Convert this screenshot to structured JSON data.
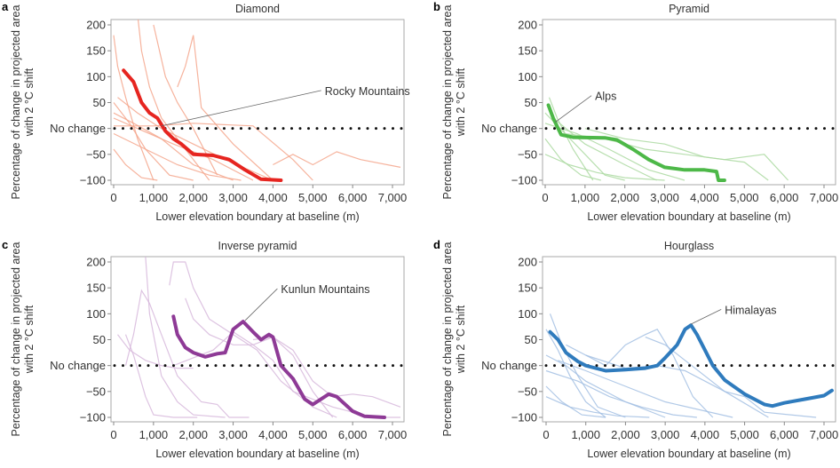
{
  "chart_data": [
    {
      "panel": "a",
      "type": "line",
      "title": "Diamond",
      "xlabel": "Lower elevation boundary at baseline (m)",
      "ylabel": [
        "Percentage of change in projected area",
        "with 2 °C shift"
      ],
      "xlim": [
        0,
        7200
      ],
      "ylim": [
        -100,
        200
      ],
      "xticks": [
        0,
        1000,
        2000,
        3000,
        4000,
        5000,
        6000,
        7000
      ],
      "xtick_labels": [
        "0",
        "1,000",
        "2,000",
        "3,000",
        "4,000",
        "5,000",
        "6,000",
        "7,000"
      ],
      "yticks": [
        200,
        150,
        100,
        50,
        0,
        -50,
        -100
      ],
      "ytick_labels": [
        "200",
        "150",
        "100",
        "50",
        "No change",
        "−50",
        "−100"
      ],
      "reference_line": {
        "y": 0,
        "label": "No change",
        "style": "dotted",
        "color": "#111111"
      },
      "color_highlight": "#e62520",
      "color_background": "#f5a68c",
      "highlight": {
        "name": "Rocky Mountains",
        "label_at": [
          5300,
          70
        ],
        "pointer_to": [
          1200,
          5
        ],
        "x": [
          250,
          500,
          700,
          900,
          1100,
          1300,
          1500,
          1700,
          2000,
          2500,
          2900,
          3300,
          3700,
          4200
        ],
        "y": [
          112,
          90,
          50,
          30,
          20,
          -5,
          -20,
          -30,
          -50,
          -52,
          -60,
          -80,
          -98,
          -100
        ]
      },
      "background": [
        {
          "x": [
            0,
            400,
            800,
            1400,
            2000
          ],
          "y": [
            50,
            10,
            -40,
            -90,
            -100
          ]
        },
        {
          "x": [
            0,
            500,
            1200,
            2000,
            3000
          ],
          "y": [
            30,
            10,
            -20,
            -70,
            -100
          ]
        },
        {
          "x": [
            0,
            300,
            700,
            1100
          ],
          "y": [
            -40,
            -70,
            -95,
            -100
          ]
        },
        {
          "x": [
            0,
            600,
            1500,
            2500,
            3500
          ],
          "y": [
            20,
            0,
            -30,
            -60,
            -100
          ]
        },
        {
          "x": [
            0,
            100,
            300,
            600,
            1000
          ],
          "y": [
            180,
            120,
            60,
            -20,
            -100
          ]
        },
        {
          "x": [
            600,
            700,
            900,
            1200,
            1800,
            2400
          ],
          "y": [
            220,
            150,
            80,
            20,
            -40,
            -100
          ]
        },
        {
          "x": [
            1600,
            1800,
            2000,
            2200,
            3000,
            4000
          ],
          "y": [
            80,
            120,
            180,
            40,
            -30,
            -100
          ]
        },
        {
          "x": [
            0,
            1000,
            2000,
            3500,
            4500,
            5000
          ],
          "y": [
            5,
            5,
            10,
            5,
            -60,
            -100
          ]
        },
        {
          "x": [
            4000,
            4500,
            5000,
            5600,
            6200,
            7200
          ],
          "y": [
            -70,
            -50,
            -70,
            -45,
            -60,
            -75
          ]
        },
        {
          "x": [
            0,
            800,
            1600,
            2400,
            3200
          ],
          "y": [
            -10,
            -40,
            -70,
            -90,
            -100
          ]
        },
        {
          "x": [
            100,
            600,
            1200,
            2000,
            2800,
            4000
          ],
          "y": [
            60,
            30,
            0,
            -30,
            -60,
            -100
          ]
        },
        {
          "x": [
            1000,
            1300,
            1600,
            2000,
            2600
          ],
          "y": [
            200,
            100,
            50,
            0,
            -90
          ]
        }
      ]
    },
    {
      "panel": "b",
      "type": "line",
      "title": "Pyramid",
      "xlabel": "Lower elevation boundary at baseline (m)",
      "ylabel": [
        "Percentage of change in projected area",
        "with 2 °C shift"
      ],
      "xlim": [
        0,
        7200
      ],
      "ylim": [
        -100,
        200
      ],
      "xticks": [
        0,
        1000,
        2000,
        3000,
        4000,
        5000,
        6000,
        7000
      ],
      "xtick_labels": [
        "0",
        "1,000",
        "2,000",
        "3,000",
        "4,000",
        "5,000",
        "6,000",
        "7,000"
      ],
      "yticks": [
        200,
        150,
        100,
        50,
        0,
        -50,
        -100
      ],
      "ytick_labels": [
        "200",
        "150",
        "100",
        "50",
        "No change",
        "−50",
        "−100"
      ],
      "reference_line": {
        "y": 0,
        "label": "No change",
        "style": "dotted",
        "color": "#111111"
      },
      "color_highlight": "#4db848",
      "color_background": "#acd9a1",
      "highlight": {
        "name": "Alps",
        "label_at": [
          1250,
          60
        ],
        "pointer_to": [
          250,
          12
        ],
        "x": [
          80,
          200,
          400,
          700,
          1500,
          1800,
          2200,
          2600,
          3000,
          3500,
          4000,
          4300,
          4350,
          4500
        ],
        "y": [
          45,
          20,
          -12,
          -17,
          -18,
          -22,
          -40,
          -60,
          -75,
          -80,
          -80,
          -83,
          -100,
          -100
        ]
      },
      "background": [
        {
          "x": [
            0,
            500,
            1000,
            1500,
            2000
          ],
          "y": [
            30,
            -10,
            -50,
            -90,
            -100
          ]
        },
        {
          "x": [
            0,
            400,
            900,
            1400
          ],
          "y": [
            -20,
            -60,
            -90,
            -100
          ]
        },
        {
          "x": [
            0,
            800,
            1600,
            2600,
            3500
          ],
          "y": [
            10,
            -10,
            -40,
            -80,
            -100
          ]
        },
        {
          "x": [
            100,
            300,
            700,
            1200
          ],
          "y": [
            60,
            20,
            -40,
            -100
          ]
        },
        {
          "x": [
            500,
            1500,
            2500,
            3500,
            4500,
            5500,
            6100
          ],
          "y": [
            -10,
            -20,
            -40,
            -50,
            -60,
            -50,
            -100
          ]
        },
        {
          "x": [
            0,
            600,
            1300,
            2000,
            3000
          ],
          "y": [
            -50,
            -70,
            -85,
            -95,
            -100
          ]
        },
        {
          "x": [
            1000,
            2000,
            3000,
            4000,
            5000,
            5600
          ],
          "y": [
            0,
            -20,
            -30,
            -55,
            -65,
            -100
          ]
        },
        {
          "x": [
            200,
            1000,
            2000,
            2800
          ],
          "y": [
            20,
            -30,
            -70,
            -100
          ]
        }
      ]
    },
    {
      "panel": "c",
      "type": "line",
      "title": "Inverse pyramid",
      "xlabel": "Lower elevation boundary at baseline (m)",
      "ylabel": [
        "Percentage of change in projected area",
        "with 2 °C shift"
      ],
      "xlim": [
        0,
        7200
      ],
      "ylim": [
        -100,
        200
      ],
      "xticks": [
        0,
        1000,
        2000,
        3000,
        4000,
        5000,
        6000,
        7000
      ],
      "xtick_labels": [
        "0",
        "1,000",
        "2,000",
        "3,000",
        "4,000",
        "5,000",
        "6,000",
        "7,000"
      ],
      "yticks": [
        200,
        150,
        100,
        50,
        0,
        -50,
        -100
      ],
      "ytick_labels": [
        "200",
        "150",
        "100",
        "50",
        "No change",
        "−50",
        "−100"
      ],
      "reference_line": {
        "y": 0,
        "label": "No change",
        "style": "dotted",
        "color": "#111111"
      },
      "color_highlight": "#8e3a96",
      "color_background": "#d7b9dc",
      "highlight": {
        "name": "Kunlun Mountains",
        "label_at": [
          4200,
          145
        ],
        "pointer_to": [
          3300,
          87
        ],
        "x": [
          1500,
          1600,
          1800,
          2000,
          2300,
          2600,
          2800,
          3000,
          3250,
          3500,
          3700,
          3900,
          4000,
          4200,
          4500,
          4800,
          5000,
          5400,
          5600,
          6000,
          6300,
          6800
        ],
        "y": [
          95,
          60,
          35,
          25,
          17,
          23,
          25,
          70,
          85,
          65,
          50,
          60,
          55,
          0,
          -25,
          -65,
          -75,
          -55,
          -60,
          -88,
          -98,
          -100
        ]
      },
      "background": [
        {
          "x": [
            100,
            400,
            800,
            1200,
            1600,
            2000
          ],
          "y": [
            60,
            30,
            10,
            0,
            -5,
            -5
          ]
        },
        {
          "x": [
            300,
            500,
            700,
            900,
            1200,
            1600,
            2200,
            2600,
            2900,
            3400
          ],
          "y": [
            0,
            60,
            145,
            120,
            60,
            -20,
            -70,
            -75,
            -100,
            -100
          ]
        },
        {
          "x": [
            300,
            500,
            800,
            1000,
            1500,
            2100
          ],
          "y": [
            60,
            20,
            -60,
            -95,
            -100,
            -100
          ]
        },
        {
          "x": [
            800,
            900,
            1200,
            1600,
            2000,
            2800
          ],
          "y": [
            210,
            100,
            -20,
            -70,
            -95,
            -100
          ]
        },
        {
          "x": [
            1400,
            1500,
            1800,
            2000,
            2400,
            3000,
            3600,
            4200,
            5000,
            5600
          ],
          "y": [
            155,
            200,
            200,
            150,
            90,
            60,
            30,
            -30,
            -80,
            -100
          ]
        },
        {
          "x": [
            1800,
            2000,
            2400,
            3000,
            3500,
            4000,
            4500,
            5000,
            5500
          ],
          "y": [
            130,
            90,
            60,
            40,
            40,
            55,
            20,
            -50,
            -100
          ]
        },
        {
          "x": [
            1500,
            2000,
            2500,
            3000,
            3500,
            4000,
            4500,
            5500,
            6500,
            7200
          ],
          "y": [
            0,
            15,
            30,
            65,
            40,
            10,
            -50,
            -80,
            -100,
            -100
          ]
        },
        {
          "x": [
            3500,
            4000,
            4500,
            5000,
            5500,
            6000,
            6500,
            7200
          ],
          "y": [
            50,
            55,
            30,
            -30,
            -60,
            -55,
            -60,
            -80
          ]
        }
      ]
    },
    {
      "panel": "d",
      "type": "line",
      "title": "Hourglass",
      "xlabel": "Lower elevation boundary at baseline (m)",
      "ylabel": [
        "Percentage of change in projected area",
        "with 2 °C shift"
      ],
      "xlim": [
        0,
        7200
      ],
      "ylim": [
        -100,
        200
      ],
      "xticks": [
        0,
        1000,
        2000,
        3000,
        4000,
        5000,
        6000,
        7000
      ],
      "xtick_labels": [
        "0",
        "1,000",
        "2,000",
        "3,000",
        "4,000",
        "5,000",
        "6,000",
        "7,000"
      ],
      "yticks": [
        200,
        150,
        100,
        50,
        0,
        -50,
        -100
      ],
      "ytick_labels": [
        "200",
        "150",
        "100",
        "50",
        "No change",
        "−50",
        "−100"
      ],
      "reference_line": {
        "y": 0,
        "label": "No change",
        "style": "dotted",
        "color": "#111111"
      },
      "color_highlight": "#2f7bbd",
      "color_background": "#a3bfe3",
      "highlight": {
        "name": "Himalayas",
        "label_at": [
          4500,
          105
        ],
        "pointer_to": [
          3650,
          80
        ],
        "x": [
          100,
          300,
          500,
          800,
          1000,
          1500,
          2000,
          2500,
          2800,
          3000,
          3300,
          3500,
          3650,
          3800,
          4000,
          4200,
          4500,
          5000,
          5500,
          5700,
          6000,
          6500,
          7000,
          7200
        ],
        "y": [
          65,
          50,
          25,
          8,
          0,
          -10,
          -8,
          -5,
          0,
          15,
          40,
          70,
          78,
          60,
          30,
          0,
          -28,
          -55,
          -75,
          -78,
          -72,
          -65,
          -58,
          -48
        ]
      },
      "background": [
        {
          "x": [
            0,
            300,
            600,
            1000,
            1500
          ],
          "y": [
            70,
            30,
            -20,
            -70,
            -100
          ]
        },
        {
          "x": [
            100,
            400,
            800,
            1300,
            2000
          ],
          "y": [
            100,
            40,
            -20,
            -80,
            -100
          ]
        },
        {
          "x": [
            0,
            500,
            1000,
            2000,
            3000
          ],
          "y": [
            20,
            0,
            -30,
            -70,
            -100
          ]
        },
        {
          "x": [
            0,
            400,
            900,
            1500
          ],
          "y": [
            -40,
            -70,
            -95,
            -100
          ]
        },
        {
          "x": [
            500,
            1000,
            1500,
            2000,
            2500,
            2800,
            3200,
            3700,
            4200
          ],
          "y": [
            40,
            20,
            0,
            40,
            60,
            70,
            20,
            -60,
            -100
          ]
        },
        {
          "x": [
            1000,
            2000,
            2800,
            3500,
            4500,
            5600
          ],
          "y": [
            20,
            -5,
            0,
            -10,
            -50,
            -100
          ]
        },
        {
          "x": [
            0,
            800,
            1600,
            2400,
            3200,
            3800
          ],
          "y": [
            -10,
            -30,
            -60,
            -80,
            -95,
            -100
          ]
        },
        {
          "x": [
            2500,
            3000,
            3500,
            4500,
            5000,
            5500,
            6800
          ],
          "y": [
            55,
            40,
            10,
            -50,
            -60,
            -90,
            -100
          ]
        },
        {
          "x": [
            0,
            600,
            1200,
            1800,
            2600
          ],
          "y": [
            -60,
            -80,
            -90,
            -97,
            -100
          ]
        },
        {
          "x": [
            300,
            1000,
            2000,
            3000,
            4700
          ],
          "y": [
            10,
            -10,
            -40,
            -70,
            -100
          ]
        }
      ]
    }
  ]
}
